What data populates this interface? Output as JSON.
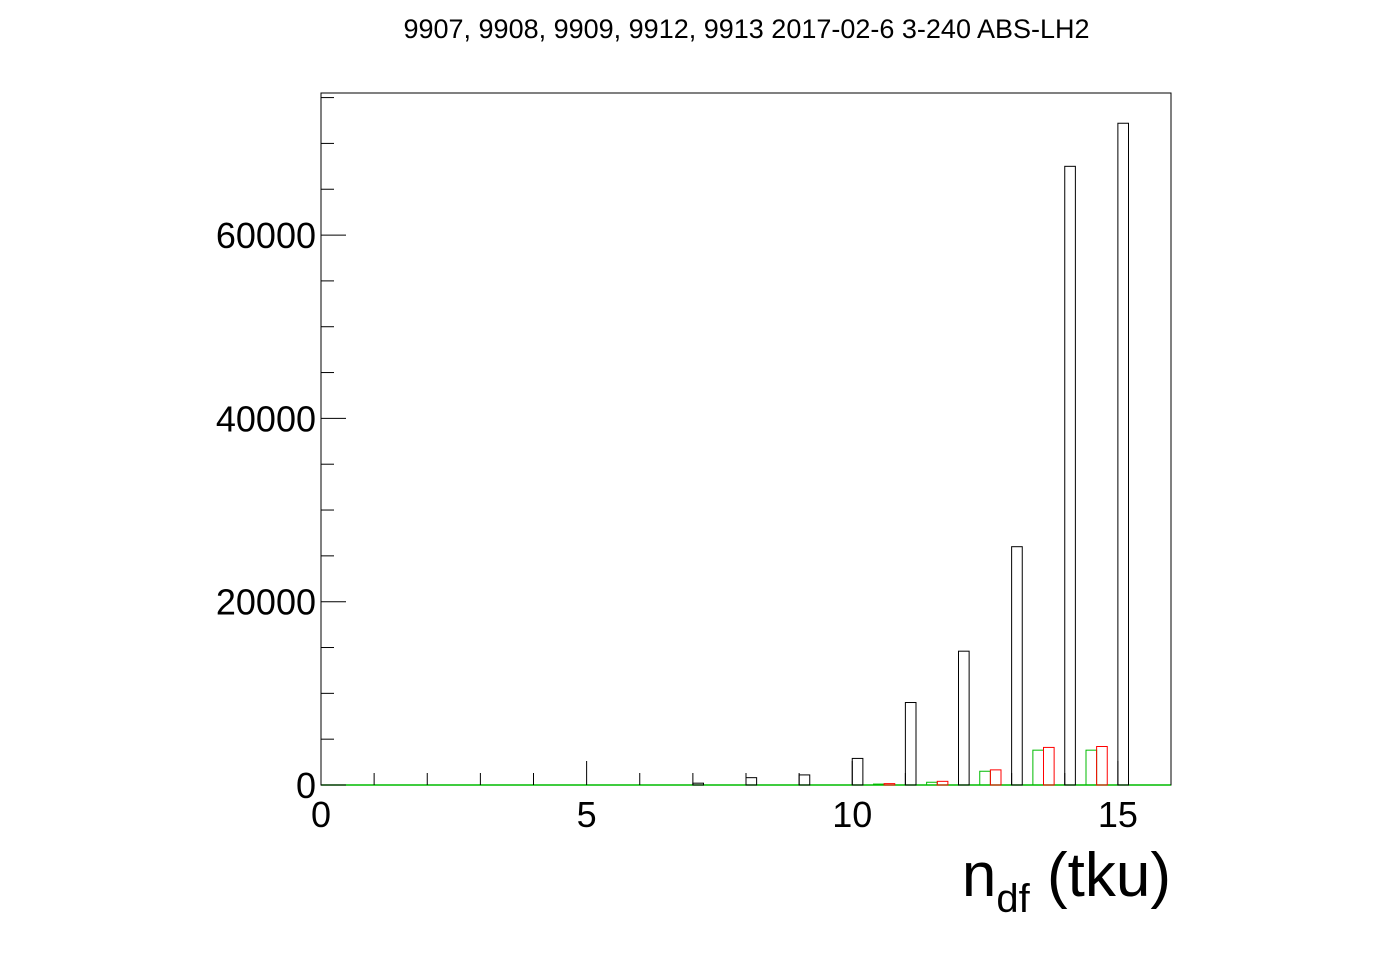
{
  "chart_data": {
    "type": "bar",
    "title": "9907, 9908, 9909, 9912, 9913 2017-02-6 3-240 ABS-LH2",
    "xlabel": {
      "main": "n",
      "sub": "df",
      "suffix": " (tku)"
    },
    "ylabel": "",
    "xlim": [
      0,
      16
    ],
    "ylim": [
      0,
      75500
    ],
    "grid": false,
    "x_ticks": [
      {
        "value": 0,
        "label": "0"
      },
      {
        "value": 5,
        "label": "5"
      },
      {
        "value": 10,
        "label": "10"
      },
      {
        "value": 15,
        "label": "15"
      }
    ],
    "y_ticks": [
      {
        "value": 0,
        "label": "0"
      },
      {
        "value": 20000,
        "label": "20000"
      },
      {
        "value": 40000,
        "label": "40000"
      },
      {
        "value": 60000,
        "label": "60000"
      }
    ],
    "x": [
      7,
      8,
      9,
      10,
      11,
      12,
      13,
      14,
      15
    ],
    "series": [
      {
        "color": "#00bb00",
        "offset": -0.6,
        "width": 0.2,
        "values": [
          0,
          0,
          0,
          0,
          100,
          300,
          1500,
          3800,
          3800
        ]
      },
      {
        "color": "#ff0000",
        "offset": -0.4,
        "width": 0.2,
        "values": [
          0,
          0,
          0,
          0,
          150,
          400,
          1650,
          4100,
          4200
        ]
      },
      {
        "color": "#000000",
        "offset": 0.0,
        "width": 0.2,
        "values": [
          200,
          800,
          1100,
          2900,
          9000,
          14600,
          26000,
          67500,
          72200
        ]
      }
    ]
  }
}
